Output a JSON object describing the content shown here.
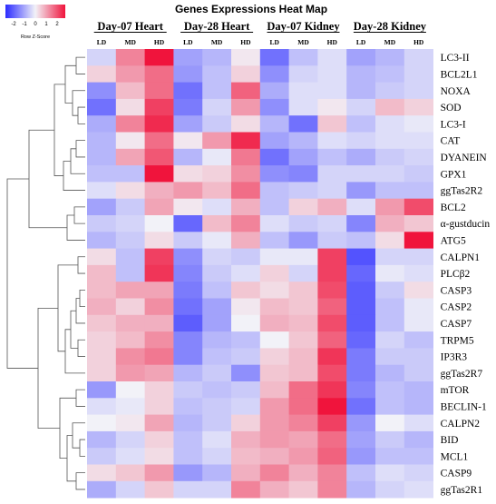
{
  "chart_data": {
    "type": "heatmap",
    "title": "Genes Expressions Heat Map",
    "color_key": {
      "label": "Row Z-Score",
      "ticks": [
        "-2",
        "-1",
        "0",
        "1",
        "2"
      ],
      "range": [
        -2,
        2
      ],
      "low_color": "#2b2bff",
      "mid_color": "#f2f2f8",
      "high_color": "#f0143c"
    },
    "groups": [
      "Day-07 Heart",
      "Day-28 Heart",
      "Day-07 Kidney",
      "Day-28 Kidney"
    ],
    "columns": [
      "LD",
      "MD",
      "HD",
      "LD",
      "MD",
      "HD",
      "LD",
      "MD",
      "HD",
      "LD",
      "MD",
      "HD"
    ],
    "rows": [
      "LC3-II",
      "BCL2L1",
      "NOXA",
      "SOD",
      "LC3-I",
      "CAT",
      "DYANEIN",
      "GPX1",
      "ggTas2R2",
      "BCL2",
      "α-gustducin",
      "ATG5",
      "CALPN1",
      "PLCβ2",
      "CASP3",
      "CASP2",
      "CASP7",
      "TRPM5",
      "IP3R3",
      "ggTas2R7",
      "mTOR",
      "BECLIN-1",
      "CALPN2",
      "BID",
      "MCL1",
      "CASP9",
      "ggTas2R1"
    ],
    "values": [
      [
        -0.3,
        1.0,
        2.2,
        -0.8,
        -0.6,
        0.1,
        -1.3,
        -0.5,
        -0.2,
        -0.8,
        -0.6,
        -0.3
      ],
      [
        0.3,
        0.8,
        1.2,
        -0.9,
        -0.5,
        0.3,
        -1.0,
        -0.3,
        -0.2,
        -0.6,
        -0.5,
        -0.3
      ],
      [
        -1.0,
        0.5,
        1.2,
        -1.3,
        -0.5,
        1.3,
        -0.7,
        -0.2,
        -0.2,
        -0.6,
        -0.4,
        -0.3
      ],
      [
        -1.3,
        0.2,
        1.6,
        -1.2,
        -0.3,
        0.8,
        -1.0,
        -0.2,
        0.1,
        -0.3,
        0.5,
        0.3
      ],
      [
        -0.7,
        1.0,
        1.8,
        -0.8,
        -0.4,
        0.2,
        -0.6,
        -1.3,
        0.4,
        -0.5,
        -0.2,
        -0.1
      ],
      [
        -0.6,
        0.1,
        1.2,
        0.1,
        0.8,
        1.8,
        -0.8,
        -0.6,
        -0.2,
        -0.3,
        -0.2,
        -0.2
      ],
      [
        -0.6,
        0.7,
        1.4,
        -0.6,
        -0.1,
        1.1,
        -1.3,
        -0.8,
        -0.5,
        -0.7,
        -0.4,
        -0.3
      ],
      [
        -0.5,
        -0.5,
        2.4,
        0.2,
        0.3,
        0.9,
        -1.0,
        -1.1,
        -0.3,
        -0.3,
        -0.3,
        -0.4
      ],
      [
        -0.2,
        0.2,
        0.6,
        0.8,
        0.5,
        1.2,
        -0.5,
        -0.4,
        -0.3,
        -0.9,
        -0.5,
        -0.5
      ],
      [
        -0.8,
        -0.4,
        0.7,
        0.1,
        -0.2,
        0.6,
        -0.5,
        0.3,
        0.6,
        -0.2,
        0.8,
        1.5
      ],
      [
        -0.4,
        -0.3,
        0.0,
        -1.4,
        0.5,
        1.0,
        -0.2,
        -0.4,
        -0.3,
        -1.1,
        0.6,
        0.4
      ],
      [
        -0.6,
        -0.4,
        0.2,
        -0.4,
        -0.1,
        0.6,
        -0.5,
        -0.9,
        -0.4,
        -0.5,
        0.2,
        2.3
      ],
      [
        0.2,
        -0.5,
        1.6,
        -1.0,
        -0.3,
        -0.4,
        -0.1,
        -0.1,
        1.6,
        -1.6,
        -0.3,
        -0.3
      ],
      [
        0.5,
        -0.5,
        1.7,
        -1.1,
        -0.4,
        -0.2,
        0.3,
        -0.3,
        1.6,
        -1.4,
        -0.1,
        -0.2
      ],
      [
        0.5,
        0.7,
        0.7,
        -1.2,
        -0.5,
        0.4,
        0.2,
        0.4,
        1.5,
        -1.5,
        -0.4,
        0.2
      ],
      [
        0.6,
        0.3,
        0.9,
        -1.3,
        -0.8,
        0.1,
        0.5,
        0.4,
        1.3,
        -1.5,
        -0.5,
        -0.1
      ],
      [
        0.4,
        0.6,
        0.6,
        -1.5,
        -0.8,
        0.0,
        0.6,
        0.5,
        1.5,
        -1.5,
        -0.5,
        -0.1
      ],
      [
        0.3,
        0.5,
        0.9,
        -1.1,
        -0.6,
        -0.5,
        0.0,
        0.4,
        1.3,
        -1.4,
        -0.3,
        -0.5
      ],
      [
        0.3,
        0.9,
        1.1,
        -1.1,
        -0.5,
        -0.4,
        0.3,
        0.5,
        1.7,
        -1.2,
        -0.4,
        -0.4
      ],
      [
        0.3,
        0.8,
        0.7,
        -0.6,
        -0.4,
        -1.0,
        0.4,
        0.5,
        1.5,
        -1.2,
        -0.6,
        -0.4
      ],
      [
        -0.9,
        0.0,
        0.3,
        -0.4,
        -0.5,
        -0.4,
        0.5,
        1.2,
        1.7,
        -1.1,
        -0.5,
        -0.6
      ],
      [
        -0.2,
        -0.1,
        0.3,
        -0.5,
        -0.4,
        -0.3,
        0.8,
        1.2,
        2.0,
        -1.3,
        -0.5,
        -0.6
      ],
      [
        0.0,
        0.1,
        0.7,
        -0.6,
        -0.4,
        0.3,
        0.8,
        1.0,
        1.6,
        -0.9,
        0.0,
        -0.2
      ],
      [
        -0.6,
        -0.3,
        0.3,
        -0.5,
        -0.2,
        0.6,
        0.8,
        0.7,
        1.2,
        -0.8,
        -0.4,
        -0.6
      ],
      [
        -0.4,
        -0.2,
        0.2,
        -0.5,
        -0.3,
        0.5,
        0.6,
        0.8,
        1.3,
        -0.9,
        -0.5,
        -0.5
      ],
      [
        0.2,
        0.4,
        0.8,
        -0.9,
        -0.6,
        0.6,
        1.0,
        0.6,
        1.0,
        -0.5,
        -0.2,
        -0.3
      ],
      [
        -0.7,
        -0.3,
        0.4,
        -0.3,
        -0.3,
        1.0,
        0.6,
        0.4,
        1.0,
        -0.6,
        -0.3,
        -0.2
      ]
    ]
  }
}
